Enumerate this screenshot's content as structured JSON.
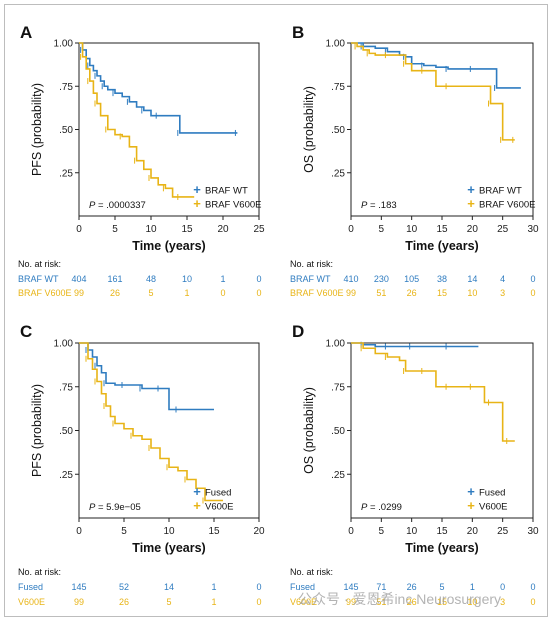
{
  "colors": {
    "blue": "#2f7cc0",
    "gold": "#e8b416",
    "axis": "#222222"
  },
  "watermark": "公众号 · 爱恩希inc Neurosurgery",
  "chart_data": [
    {
      "type": "line",
      "panel": "A",
      "ylabel": "PFS (probability)",
      "xlabel": "Time (years)",
      "xlim": [
        0,
        25
      ],
      "ylim": [
        0,
        1
      ],
      "xticks": [
        0,
        5,
        10,
        15,
        20,
        25
      ],
      "yticks": [
        1.0,
        0.75,
        0.5,
        0.25
      ],
      "ytick_labels": [
        "1.00",
        ".75",
        ".50",
        ".25"
      ],
      "pvalue": ".0000337",
      "legend_position": "bottom-right",
      "series": [
        {
          "name": "BRAF WT",
          "color": "blue",
          "x": [
            0,
            0.5,
            1,
            1.5,
            2,
            2.5,
            3,
            3.5,
            4,
            5,
            6,
            7,
            8,
            9,
            10,
            11,
            12,
            14,
            15,
            22
          ],
          "y": [
            1,
            0.96,
            0.91,
            0.87,
            0.84,
            0.81,
            0.78,
            0.75,
            0.73,
            0.71,
            0.69,
            0.66,
            0.63,
            0.61,
            0.58,
            0.58,
            0.58,
            0.48,
            0.48,
            0.48
          ]
        },
        {
          "name": "BRAF V600E",
          "color": "gold",
          "x": [
            0,
            0.5,
            1,
            1.5,
            2,
            2.5,
            3,
            4,
            5,
            6,
            7,
            8,
            9,
            10,
            11,
            12,
            13,
            14,
            16
          ],
          "y": [
            1,
            0.92,
            0.85,
            0.78,
            0.71,
            0.65,
            0.58,
            0.5,
            0.47,
            0.46,
            0.4,
            0.32,
            0.27,
            0.22,
            0.18,
            0.16,
            0.11,
            0.11,
            0.11
          ]
        }
      ],
      "risk_table": {
        "title": "No. at risk:",
        "rows": [
          {
            "label": "BRAF WT",
            "color": "blue",
            "values": [
              "404",
              "161",
              "48",
              "10",
              "1",
              "0"
            ]
          },
          {
            "label": "BRAF V600E",
            "color": "gold",
            "values": [
              "99",
              "26",
              "5",
              "1",
              "0",
              "0"
            ]
          }
        ]
      }
    },
    {
      "type": "line",
      "panel": "B",
      "ylabel": "OS (probability)",
      "xlabel": "Time (years)",
      "xlim": [
        0,
        30
      ],
      "ylim": [
        0,
        1
      ],
      "xticks": [
        0,
        5,
        10,
        15,
        20,
        25,
        30
      ],
      "yticks": [
        1.0,
        0.75,
        0.5,
        0.25
      ],
      "ytick_labels": [
        "1.00",
        ".75",
        ".50",
        ".25"
      ],
      "pvalue": ".183",
      "legend_position": "bottom-right",
      "series": [
        {
          "name": "BRAF WT",
          "color": "blue",
          "x": [
            0,
            2,
            4,
            6,
            8,
            9,
            10,
            12,
            14,
            16,
            18,
            20,
            23,
            24,
            28
          ],
          "y": [
            1,
            0.98,
            0.97,
            0.95,
            0.93,
            0.92,
            0.88,
            0.87,
            0.86,
            0.85,
            0.85,
            0.85,
            0.85,
            0.74,
            0.74
          ]
        },
        {
          "name": "BRAF V600E",
          "color": "gold",
          "x": [
            0,
            1,
            2,
            3,
            4,
            6,
            8,
            9,
            10,
            12,
            14,
            16,
            22,
            23,
            24,
            25,
            26,
            27
          ],
          "y": [
            1,
            0.98,
            0.96,
            0.94,
            0.93,
            0.93,
            0.93,
            0.88,
            0.84,
            0.84,
            0.75,
            0.75,
            0.75,
            0.65,
            0.65,
            0.44,
            0.44,
            0.44
          ]
        }
      ],
      "risk_table": {
        "title": "No. at risk:",
        "rows": [
          {
            "label": "BRAF WT",
            "color": "blue",
            "values": [
              "410",
              "230",
              "105",
              "38",
              "14",
              "4",
              "0"
            ]
          },
          {
            "label": "BRAF V600E",
            "color": "gold",
            "values": [
              "99",
              "51",
              "26",
              "15",
              "10",
              "3",
              "0"
            ]
          }
        ]
      }
    },
    {
      "type": "line",
      "panel": "C",
      "ylabel": "PFS (probability)",
      "xlabel": "Time (years)",
      "xlim": [
        0,
        20
      ],
      "ylim": [
        0,
        1
      ],
      "xticks": [
        0,
        5,
        10,
        15,
        20
      ],
      "yticks": [
        1.0,
        0.75,
        0.5,
        0.25
      ],
      "ytick_labels": [
        "1.00",
        ".75",
        ".50",
        ".25"
      ],
      "pvalue": "5.9e−05",
      "legend_position": "bottom-right",
      "series": [
        {
          "name": "Fused",
          "color": "blue",
          "x": [
            0,
            1,
            1.5,
            2,
            2.5,
            3,
            4,
            5,
            6,
            7,
            8,
            9,
            10,
            11,
            15
          ],
          "y": [
            1,
            0.96,
            0.92,
            0.87,
            0.83,
            0.77,
            0.76,
            0.76,
            0.76,
            0.74,
            0.74,
            0.74,
            0.62,
            0.62,
            0.62
          ]
        },
        {
          "name": "V600E",
          "color": "gold",
          "x": [
            0,
            1,
            1.5,
            2,
            2.5,
            3,
            3.5,
            4,
            5,
            6,
            7,
            8,
            9,
            10,
            11,
            12,
            13,
            14,
            16
          ],
          "y": [
            1,
            0.91,
            0.85,
            0.78,
            0.71,
            0.64,
            0.58,
            0.54,
            0.51,
            0.47,
            0.45,
            0.4,
            0.34,
            0.29,
            0.27,
            0.22,
            0.17,
            0.1,
            0.1
          ]
        }
      ],
      "risk_table": {
        "title": "No. at risk:",
        "rows": [
          {
            "label": "Fused",
            "color": "blue",
            "values": [
              "145",
              "52",
              "14",
              "1",
              "0"
            ]
          },
          {
            "label": "V600E",
            "color": "gold",
            "values": [
              "99",
              "26",
              "5",
              "1",
              "0"
            ]
          }
        ]
      }
    },
    {
      "type": "line",
      "panel": "D",
      "ylabel": "OS (probability)",
      "xlabel": "Time (years)",
      "xlim": [
        0,
        30
      ],
      "ylim": [
        0,
        1
      ],
      "xticks": [
        0,
        5,
        10,
        15,
        20,
        25,
        30
      ],
      "yticks": [
        1.0,
        0.75,
        0.5,
        0.25
      ],
      "ytick_labels": [
        "1.00",
        ".75",
        ".50",
        ".25"
      ],
      "pvalue": ".0299",
      "legend_position": "bottom-right",
      "series": [
        {
          "name": "Fused",
          "color": "blue",
          "x": [
            0,
            2,
            4,
            6,
            8,
            10,
            12,
            16,
            21
          ],
          "y": [
            1,
            0.99,
            0.98,
            0.98,
            0.98,
            0.98,
            0.98,
            0.98,
            0.98
          ]
        },
        {
          "name": "V600E",
          "color": "gold",
          "x": [
            0,
            2,
            4,
            6,
            8,
            9,
            10,
            12,
            14,
            16,
            18,
            20,
            22,
            23,
            25,
            26,
            27
          ],
          "y": [
            1,
            0.97,
            0.94,
            0.92,
            0.9,
            0.84,
            0.84,
            0.84,
            0.75,
            0.75,
            0.75,
            0.75,
            0.66,
            0.66,
            0.44,
            0.44,
            0.44
          ]
        }
      ],
      "risk_table": {
        "title": "No. at risk:",
        "rows": [
          {
            "label": "Fused",
            "color": "blue",
            "values": [
              "145",
              "71",
              "26",
              "5",
              "1",
              "0",
              "0"
            ]
          },
          {
            "label": "V600E",
            "color": "gold",
            "values": [
              "99",
              "51",
              "26",
              "15",
              "10",
              "3",
              "0"
            ]
          }
        ]
      }
    }
  ]
}
